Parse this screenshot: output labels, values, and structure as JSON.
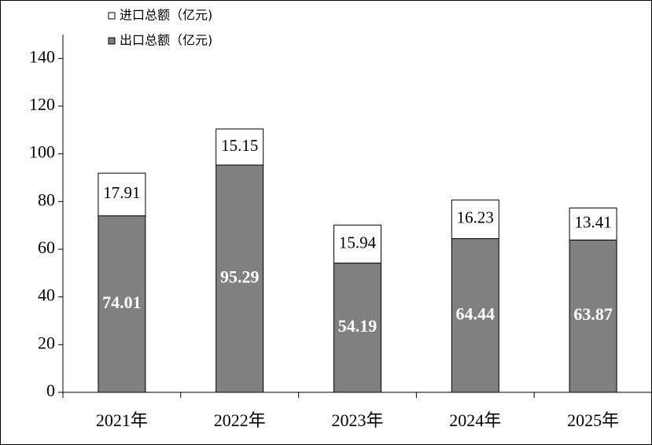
{
  "chart_data": {
    "type": "stacked_bar",
    "categories": [
      "2021年",
      "2022年",
      "2023年",
      "2024年",
      "2025年"
    ],
    "series": [
      {
        "name": "出口总额（亿元)",
        "color": "#808080",
        "values": [
          74.01,
          95.29,
          54.19,
          64.44,
          63.87
        ]
      },
      {
        "name": "进口总额（亿元)",
        "color": "#ffffff",
        "values": [
          17.91,
          15.15,
          15.94,
          16.23,
          13.41
        ]
      }
    ],
    "ylim": [
      0,
      150
    ],
    "yticks": [
      0,
      20,
      40,
      60,
      80,
      100,
      120,
      140
    ],
    "grid": false
  }
}
